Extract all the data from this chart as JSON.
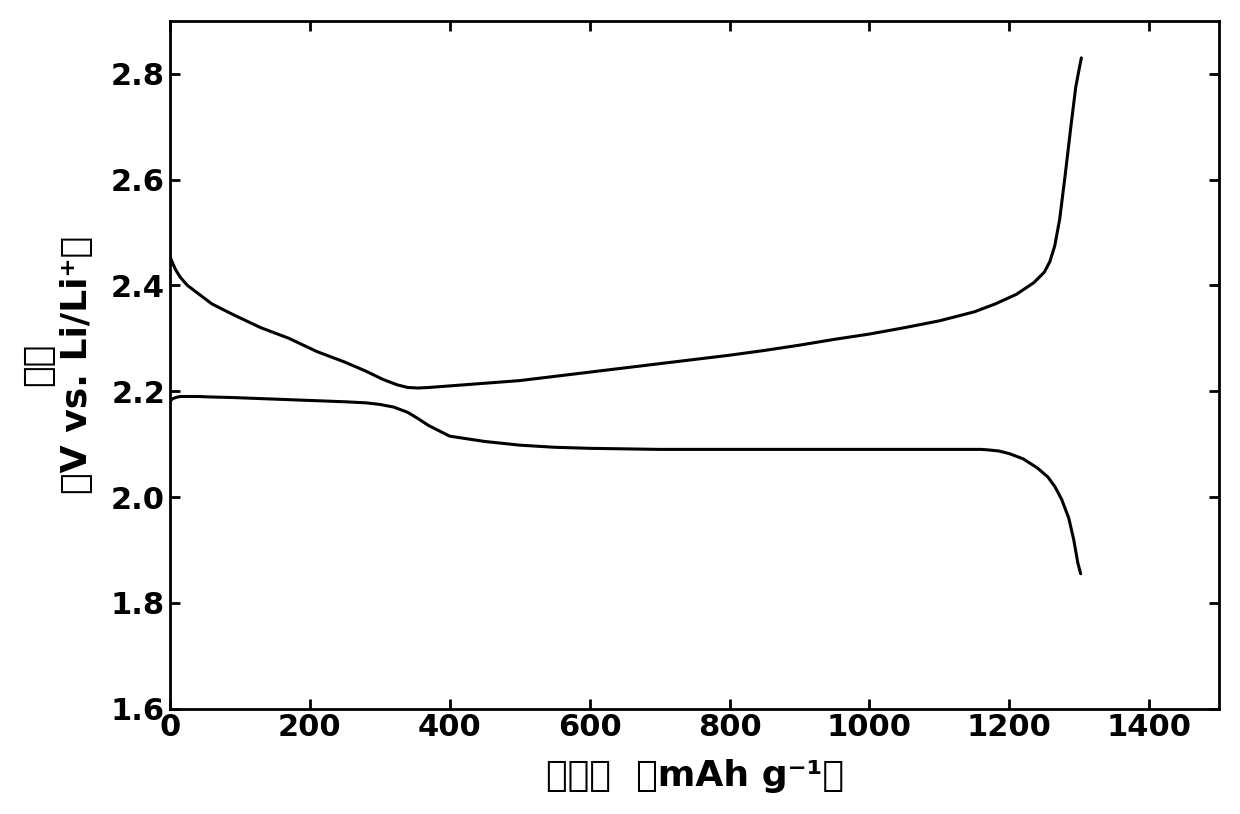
{
  "discharge_x": [
    0,
    3,
    8,
    15,
    25,
    40,
    60,
    90,
    130,
    170,
    210,
    250,
    280,
    300,
    320,
    340,
    355,
    370,
    400,
    450,
    500,
    550,
    600,
    650,
    700,
    750,
    800,
    850,
    900,
    950,
    1000,
    1050,
    1100,
    1130,
    1150,
    1160,
    1170,
    1185,
    1200,
    1220,
    1240,
    1255,
    1265,
    1275,
    1285,
    1292,
    1298,
    1302
  ],
  "discharge_y": [
    2.18,
    2.185,
    2.188,
    2.19,
    2.19,
    2.19,
    2.189,
    2.188,
    2.186,
    2.184,
    2.182,
    2.18,
    2.178,
    2.175,
    2.17,
    2.16,
    2.148,
    2.135,
    2.115,
    2.105,
    2.098,
    2.094,
    2.092,
    2.091,
    2.09,
    2.09,
    2.09,
    2.09,
    2.09,
    2.09,
    2.09,
    2.09,
    2.09,
    2.09,
    2.09,
    2.09,
    2.089,
    2.087,
    2.082,
    2.072,
    2.055,
    2.038,
    2.02,
    1.995,
    1.96,
    1.92,
    1.875,
    1.855
  ],
  "charge_x": [
    0,
    3,
    8,
    15,
    25,
    40,
    60,
    90,
    130,
    170,
    210,
    250,
    280,
    305,
    325,
    340,
    355,
    370,
    400,
    450,
    500,
    550,
    600,
    650,
    700,
    750,
    800,
    850,
    900,
    950,
    1000,
    1050,
    1100,
    1150,
    1180,
    1210,
    1235,
    1250,
    1258,
    1265,
    1272,
    1280,
    1288,
    1295,
    1300,
    1303
  ],
  "charge_y": [
    2.455,
    2.445,
    2.43,
    2.415,
    2.4,
    2.385,
    2.365,
    2.345,
    2.32,
    2.3,
    2.275,
    2.255,
    2.238,
    2.222,
    2.212,
    2.207,
    2.206,
    2.207,
    2.21,
    2.215,
    2.22,
    2.228,
    2.236,
    2.244,
    2.252,
    2.26,
    2.268,
    2.277,
    2.287,
    2.298,
    2.308,
    2.32,
    2.333,
    2.35,
    2.365,
    2.383,
    2.405,
    2.425,
    2.445,
    2.475,
    2.525,
    2.61,
    2.7,
    2.775,
    2.81,
    2.83
  ],
  "xlabel_cn": "比容量",
  "xlabel_en": "（mAh g⁻¹）",
  "ylabel_top": "电压",
  "ylabel_bottom": "（V vs. Li/Li⁺）",
  "xlim": [
    0,
    1500
  ],
  "ylim": [
    1.6,
    2.9
  ],
  "xticks": [
    0,
    200,
    400,
    600,
    800,
    1000,
    1200,
    1400
  ],
  "yticks": [
    1.6,
    1.8,
    2.0,
    2.2,
    2.4,
    2.6,
    2.8
  ],
  "line_color": "#000000",
  "line_width": 2.2,
  "background_color": "#ffffff",
  "tick_fontsize": 22,
  "label_fontsize": 26
}
